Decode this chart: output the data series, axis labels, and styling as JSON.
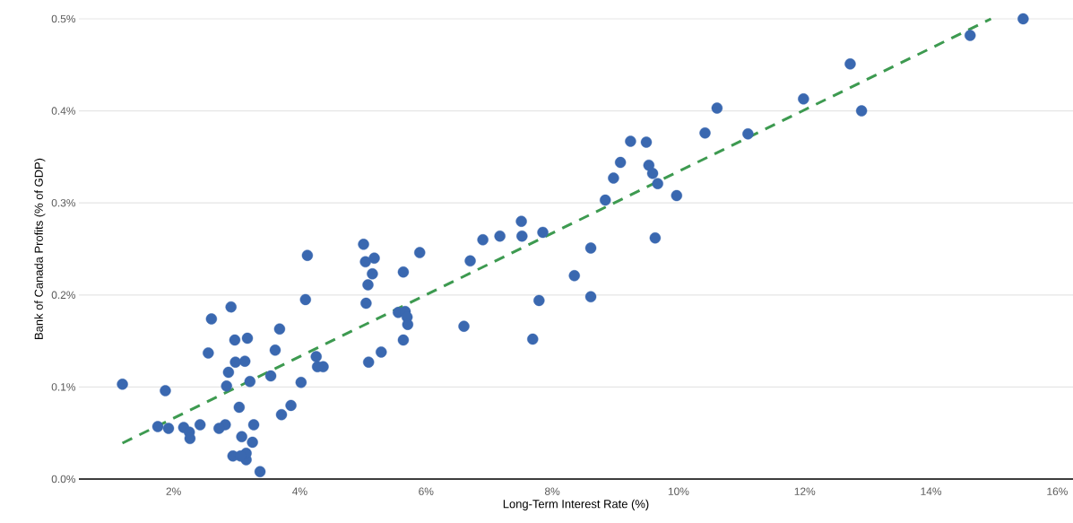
{
  "chart_data": {
    "type": "scatter",
    "xlabel": "Long-Term Interest Rate (%)",
    "ylabel": "Bank of Canada Profits (% of GDP)",
    "xlim": [
      0.5,
      16.25
    ],
    "ylim": [
      0,
      0.5
    ],
    "xticks": [
      {
        "value": 2,
        "label": "2%"
      },
      {
        "value": 4,
        "label": "4%"
      },
      {
        "value": 6,
        "label": "6%"
      },
      {
        "value": 8,
        "label": "8%"
      },
      {
        "value": 10,
        "label": "10%"
      },
      {
        "value": 12,
        "label": "12%"
      },
      {
        "value": 14,
        "label": "14%"
      },
      {
        "value": 16,
        "label": "16%"
      }
    ],
    "yticks": [
      {
        "value": 0,
        "label": "0.0%"
      },
      {
        "value": 0.1,
        "label": "0.1%"
      },
      {
        "value": 0.2,
        "label": "0.2%"
      },
      {
        "value": 0.3,
        "label": "0.3%"
      },
      {
        "value": 0.4,
        "label": "0.4%"
      },
      {
        "value": 0.5,
        "label": "0.5%"
      }
    ],
    "grid": "y",
    "series": [
      {
        "type": "scatter",
        "color": "#3a68b0",
        "marker": "circle",
        "x": [
          1.19,
          1.87,
          1.75,
          1.92,
          2.16,
          2.42,
          2.25,
          2.26,
          2.91,
          2.6,
          2.55,
          3.17,
          2.97,
          3.13,
          2.98,
          2.87,
          2.84,
          3.21,
          3.04,
          3.27,
          2.82,
          2.72,
          3.08,
          3.25,
          2.94,
          3.15,
          3.15,
          3.06,
          3.37,
          3.68,
          3.61,
          3.54,
          3.71,
          3.86,
          4.02,
          4.12,
          4.09,
          4.26,
          4.37,
          4.28,
          5.01,
          5.18,
          5.04,
          5.15,
          5.08,
          5.05,
          5.64,
          5.9,
          5.56,
          5.67,
          5.7,
          5.71,
          5.64,
          5.29,
          5.09,
          6.6,
          6.7,
          6.9,
          7.17,
          7.51,
          7.52,
          7.85,
          7.79,
          7.69,
          8.35,
          8.61,
          8.61,
          8.84,
          8.97,
          9.08,
          9.24,
          9.49,
          9.53,
          9.59,
          9.67,
          9.63,
          9.97,
          10.61,
          10.42,
          11.1,
          11.98,
          12.72,
          12.9,
          14.62,
          15.46
        ],
        "values": [
          0.103,
          0.096,
          0.057,
          0.055,
          0.056,
          0.059,
          0.051,
          0.044,
          0.187,
          0.174,
          0.137,
          0.153,
          0.151,
          0.128,
          0.127,
          0.116,
          0.101,
          0.106,
          0.078,
          0.059,
          0.059,
          0.055,
          0.046,
          0.04,
          0.025,
          0.021,
          0.028,
          0.025,
          0.008,
          0.163,
          0.14,
          0.112,
          0.07,
          0.08,
          0.105,
          0.243,
          0.195,
          0.133,
          0.122,
          0.122,
          0.255,
          0.24,
          0.236,
          0.223,
          0.211,
          0.191,
          0.225,
          0.246,
          0.181,
          0.182,
          0.176,
          0.168,
          0.151,
          0.138,
          0.127,
          0.166,
          0.237,
          0.26,
          0.264,
          0.28,
          0.264,
          0.268,
          0.194,
          0.152,
          0.221,
          0.251,
          0.198,
          0.303,
          0.327,
          0.344,
          0.367,
          0.366,
          0.341,
          0.332,
          0.321,
          0.262,
          0.308,
          0.403,
          0.376,
          0.375,
          0.413,
          0.451,
          0.4,
          0.482,
          0.5
        ]
      },
      {
        "type": "line",
        "color": "#3d9a50",
        "line_style": "dashed",
        "marker": "none",
        "x": [
          1.19,
          14.95
        ],
        "values": [
          0.039,
          0.5
        ]
      }
    ]
  }
}
